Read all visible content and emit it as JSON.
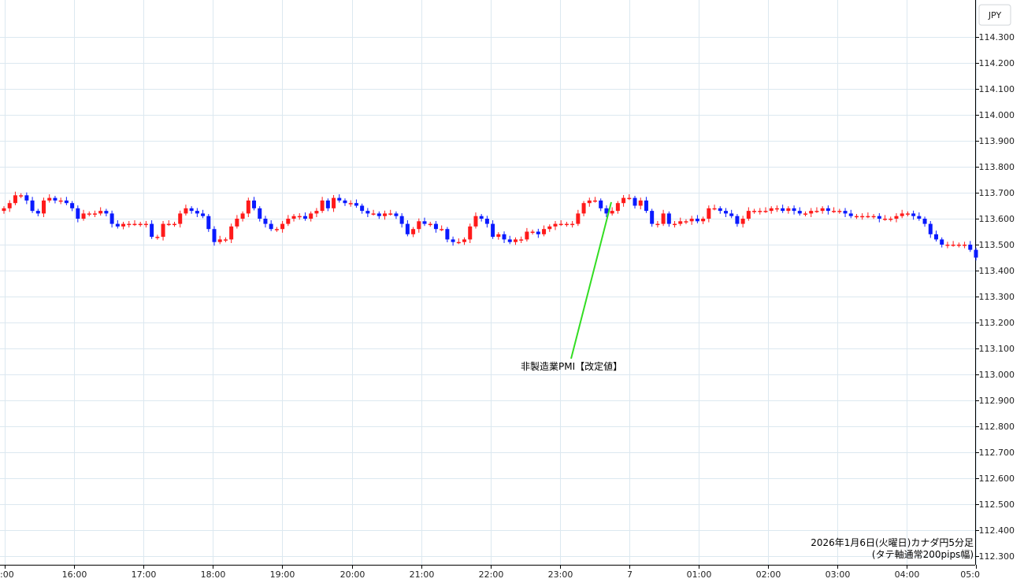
{
  "chart_data": {
    "type": "candlestick",
    "currency_label": "JPY",
    "y_ticks": [
      "114.300",
      "114.200",
      "114.100",
      "114.000",
      "113.900",
      "113.800",
      "113.700",
      "113.600",
      "113.500",
      "113.400",
      "113.300",
      "113.200",
      "113.100",
      "113.000",
      "112.900",
      "112.800",
      "112.700",
      "112.600",
      "112.500",
      "112.400",
      "112.300"
    ],
    "ylim": [
      112.28,
      114.36
    ],
    "x_ticks": [
      ":00",
      "16:00",
      "17:00",
      "18:00",
      "19:00",
      "20:00",
      "21:00",
      "22:00",
      "23:00",
      "7",
      "01:00",
      "02:00",
      "03:00",
      "04:00",
      "05:0"
    ],
    "annotation": "非製造業PMI【改定値】",
    "caption_line1": "2026年1月6日(火曜日)カナダ円5分足",
    "caption_line2": "(タテ軸通常200pips幅)",
    "colors": {
      "up": "#ff1a1a",
      "down": "#0a1aff",
      "grid": "#dce8f0",
      "annotation_line": "#33dd22"
    },
    "grid": true,
    "closes": [
      113.64,
      113.66,
      113.69,
      113.69,
      113.67,
      113.63,
      113.62,
      113.67,
      113.68,
      113.67,
      113.67,
      113.66,
      113.64,
      113.6,
      113.62,
      113.62,
      113.62,
      113.63,
      113.62,
      113.58,
      113.57,
      113.58,
      113.58,
      113.58,
      113.58,
      113.58,
      113.53,
      113.53,
      113.58,
      113.58,
      113.58,
      113.62,
      113.64,
      113.63,
      113.62,
      113.61,
      113.56,
      113.51,
      113.52,
      113.52,
      113.57,
      113.6,
      113.62,
      113.67,
      113.64,
      113.6,
      113.58,
      113.56,
      113.56,
      113.58,
      113.6,
      113.61,
      113.61,
      113.6,
      113.62,
      113.63,
      113.67,
      113.64,
      113.68,
      113.67,
      113.66,
      113.66,
      113.65,
      113.63,
      113.62,
      113.62,
      113.61,
      113.62,
      113.62,
      113.61,
      113.58,
      113.54,
      113.56,
      113.59,
      113.58,
      113.58,
      113.56,
      113.56,
      113.52,
      113.51,
      113.51,
      113.52,
      113.57,
      113.61,
      113.6,
      113.58,
      113.53,
      113.54,
      113.52,
      113.51,
      113.52,
      113.52,
      113.55,
      113.55,
      113.54,
      113.56,
      113.57,
      113.58,
      113.58,
      113.58,
      113.58,
      113.62,
      113.66,
      113.67,
      113.67,
      113.64,
      113.62,
      113.63,
      113.66,
      113.68,
      113.68,
      113.65,
      113.67,
      113.63,
      113.58,
      113.58,
      113.62,
      113.58,
      113.58,
      113.59,
      113.59,
      113.6,
      113.59,
      113.6,
      113.64,
      113.64,
      113.63,
      113.62,
      113.61,
      113.58,
      113.6,
      113.63,
      113.63,
      113.63,
      113.63,
      113.64,
      113.64,
      113.63,
      113.64,
      113.63,
      113.62,
      113.62,
      113.63,
      113.63,
      113.64,
      113.63,
      113.63,
      113.63,
      113.62,
      113.61,
      113.61,
      113.61,
      113.61,
      113.61,
      113.6,
      113.6,
      113.6,
      113.61,
      113.62,
      113.62,
      113.61,
      113.6,
      113.58,
      113.54,
      113.52,
      113.5,
      113.5,
      113.5,
      113.5,
      113.5,
      113.48,
      113.45
    ]
  }
}
